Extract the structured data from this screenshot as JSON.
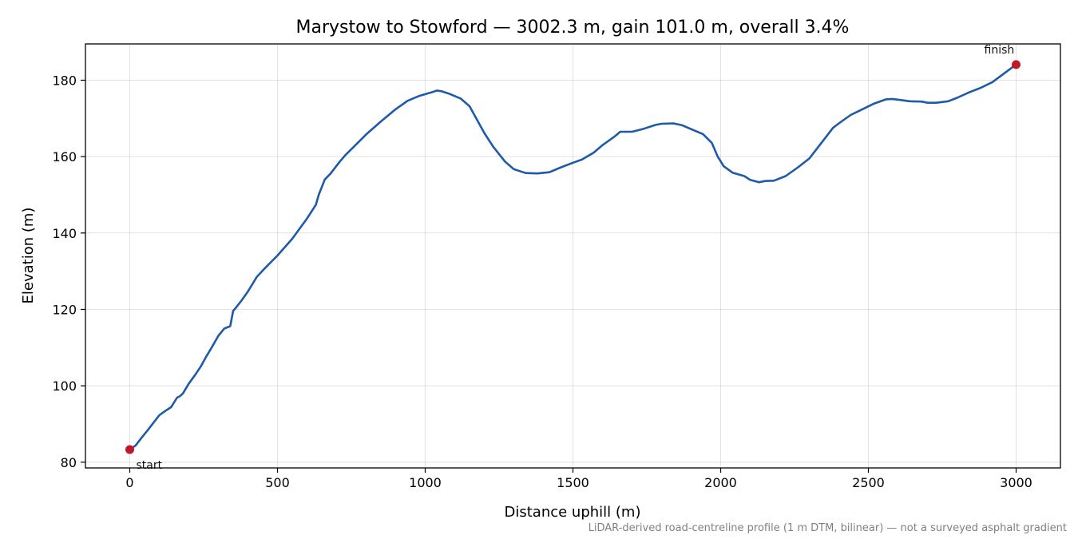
{
  "chart_data": {
    "type": "line",
    "title": "Marystow to Stowford — 3002.3 m, gain 101.0 m, overall 3.4%",
    "xlabel": "Distance uphill (m)",
    "ylabel": "Elevation (m)",
    "xlim": [
      -150,
      3150
    ],
    "ylim": [
      78.5,
      189.5
    ],
    "xticks": [
      0,
      500,
      1000,
      1500,
      2000,
      2500,
      3000
    ],
    "xtick_labels": [
      "0",
      "500",
      "1000",
      "1500",
      "2000",
      "2500",
      "3000"
    ],
    "yticks": [
      80,
      100,
      120,
      140,
      160,
      180
    ],
    "ytick_labels": [
      "80",
      "100",
      "120",
      "140",
      "160",
      "180"
    ],
    "grid": true,
    "line_color": "#1f5aa8",
    "marker_color": "#c0182a",
    "series": [
      {
        "x": [
          0,
          20,
          40,
          60,
          80,
          100,
          120,
          140,
          160,
          170,
          180,
          200,
          220,
          240,
          260,
          280,
          300,
          320,
          340,
          350,
          360,
          370,
          380,
          400,
          430,
          460,
          500,
          550,
          600,
          630,
          640,
          650,
          660,
          680,
          700,
          710,
          730,
          760,
          800,
          850,
          900,
          940,
          980,
          1020,
          1040,
          1055,
          1080,
          1120,
          1150,
          1200,
          1230,
          1270,
          1300,
          1340,
          1380,
          1420,
          1460,
          1500,
          1530,
          1570,
          1600,
          1640,
          1660,
          1700,
          1740,
          1780,
          1800,
          1840,
          1870,
          1900,
          1940,
          1970,
          1990,
          2010,
          2040,
          2080,
          2100,
          2130,
          2150,
          2180,
          2220,
          2260,
          2300,
          2340,
          2380,
          2400,
          2440,
          2480,
          2520,
          2560,
          2580,
          2600,
          2640,
          2680,
          2700,
          2730,
          2770,
          2800,
          2840,
          2880,
          2920,
          2960,
          3000
        ],
        "y": [
          83.3,
          84.4,
          86.4,
          88.3,
          90.3,
          92.3,
          93.4,
          94.4,
          96.9,
          97.3,
          98.0,
          100.6,
          102.7,
          105.0,
          107.8,
          110.4,
          113.1,
          115.0,
          115.6,
          119.6,
          120.5,
          121.5,
          122.5,
          124.7,
          128.5,
          131.0,
          134.1,
          138.5,
          143.8,
          147.4,
          150.1,
          152.0,
          154.0,
          155.6,
          157.6,
          158.6,
          160.4,
          162.7,
          165.8,
          169.2,
          172.4,
          174.6,
          175.9,
          176.8,
          177.3,
          177.1,
          176.5,
          175.2,
          173.2,
          166.2,
          162.6,
          158.7,
          156.7,
          155.7,
          155.6,
          155.9,
          157.2,
          158.4,
          159.2,
          161.0,
          163.0,
          165.2,
          166.5,
          166.5,
          167.3,
          168.3,
          168.6,
          168.7,
          168.2,
          167.2,
          165.9,
          163.6,
          160.0,
          157.5,
          155.8,
          154.9,
          153.9,
          153.3,
          153.6,
          153.7,
          154.9,
          157.1,
          159.5,
          163.5,
          167.5,
          168.7,
          170.9,
          172.4,
          173.9,
          175.0,
          175.1,
          174.9,
          174.5,
          174.4,
          174.1,
          174.1,
          174.5,
          175.4,
          176.8,
          178.0,
          179.5,
          181.8,
          184.1
        ]
      }
    ],
    "markers": [
      {
        "label": "start",
        "x": 0,
        "y": 83.3
      },
      {
        "label": "finish",
        "x": 3000,
        "y": 184.1
      }
    ],
    "footnote": "LiDAR-derived road-centreline profile (1 m DTM, bilinear) — not a surveyed asphalt gradient"
  }
}
